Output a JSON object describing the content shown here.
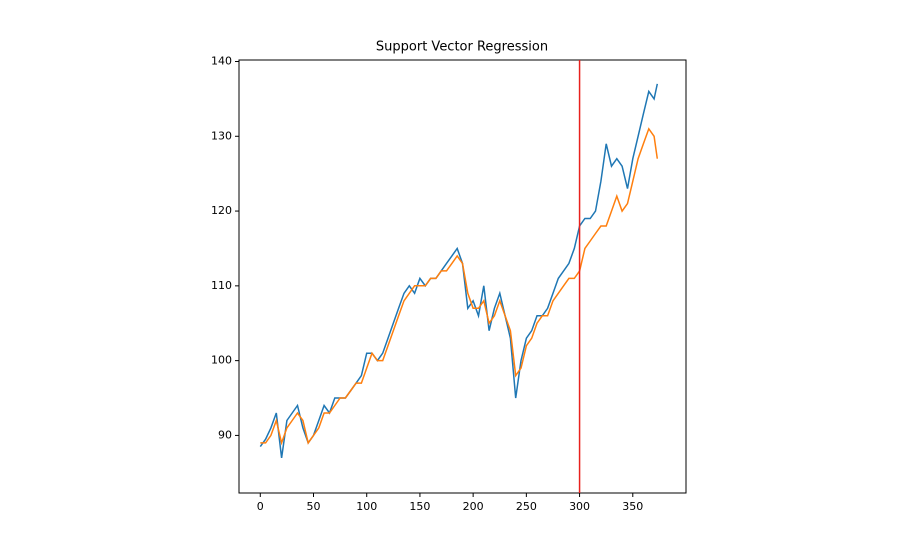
{
  "chart_data": {
    "type": "line",
    "title": "Support Vector Regression",
    "x": [
      0,
      5,
      10,
      15,
      20,
      25,
      30,
      35,
      40,
      45,
      50,
      55,
      60,
      65,
      70,
      75,
      80,
      85,
      90,
      95,
      100,
      105,
      110,
      115,
      120,
      125,
      130,
      135,
      140,
      145,
      150,
      155,
      160,
      165,
      170,
      175,
      180,
      185,
      190,
      195,
      200,
      205,
      210,
      215,
      220,
      225,
      230,
      235,
      240,
      245,
      250,
      255,
      260,
      265,
      270,
      275,
      280,
      285,
      290,
      295,
      300,
      305,
      310,
      315,
      320,
      325,
      330,
      335,
      340,
      345,
      350,
      355,
      360,
      365,
      370,
      373
    ],
    "series": [
      {
        "color": "#1f77b4",
        "values": [
          88.5,
          89.5,
          91,
          93,
          87,
          92,
          93,
          94,
          91,
          89,
          90,
          92,
          94,
          93,
          95,
          95,
          95,
          96,
          97,
          98,
          101,
          101,
          100,
          101,
          103,
          105,
          107,
          109,
          110,
          109,
          111,
          110,
          111,
          111,
          112,
          113,
          114,
          115,
          113,
          107,
          108,
          106,
          110,
          104,
          107,
          109,
          106,
          103,
          95,
          100,
          103,
          104,
          106,
          106,
          107,
          109,
          111,
          112,
          113,
          115,
          118,
          119,
          119,
          120,
          124,
          129,
          126,
          127,
          126,
          123,
          127,
          130,
          133,
          136,
          135,
          137
        ]
      },
      {
        "color": "#ff7f0e",
        "values": [
          89,
          89,
          90,
          92,
          89,
          91,
          92,
          93,
          92,
          89,
          90,
          91,
          93,
          93,
          94,
          95,
          95,
          96,
          97,
          97,
          99,
          101,
          100,
          100,
          102,
          104,
          106,
          108,
          109,
          110,
          110,
          110,
          111,
          111,
          112,
          112,
          113,
          114,
          113,
          109,
          107,
          107,
          108,
          105,
          106,
          108,
          106,
          104,
          98,
          99,
          102,
          103,
          105,
          106,
          106,
          108,
          109,
          110,
          111,
          111,
          112,
          115,
          116,
          117,
          118,
          118,
          120,
          122,
          120,
          121,
          124,
          127,
          129,
          131,
          130,
          127
        ]
      }
    ],
    "vline": {
      "x": 300,
      "color": "#e8211d"
    },
    "xlim": [
      -20,
      400
    ],
    "ylim": [
      82.3,
      140.2
    ],
    "xticks": [
      0,
      50,
      100,
      150,
      200,
      250,
      300,
      350
    ],
    "yticks": [
      90,
      100,
      110,
      120,
      130,
      140
    ]
  }
}
